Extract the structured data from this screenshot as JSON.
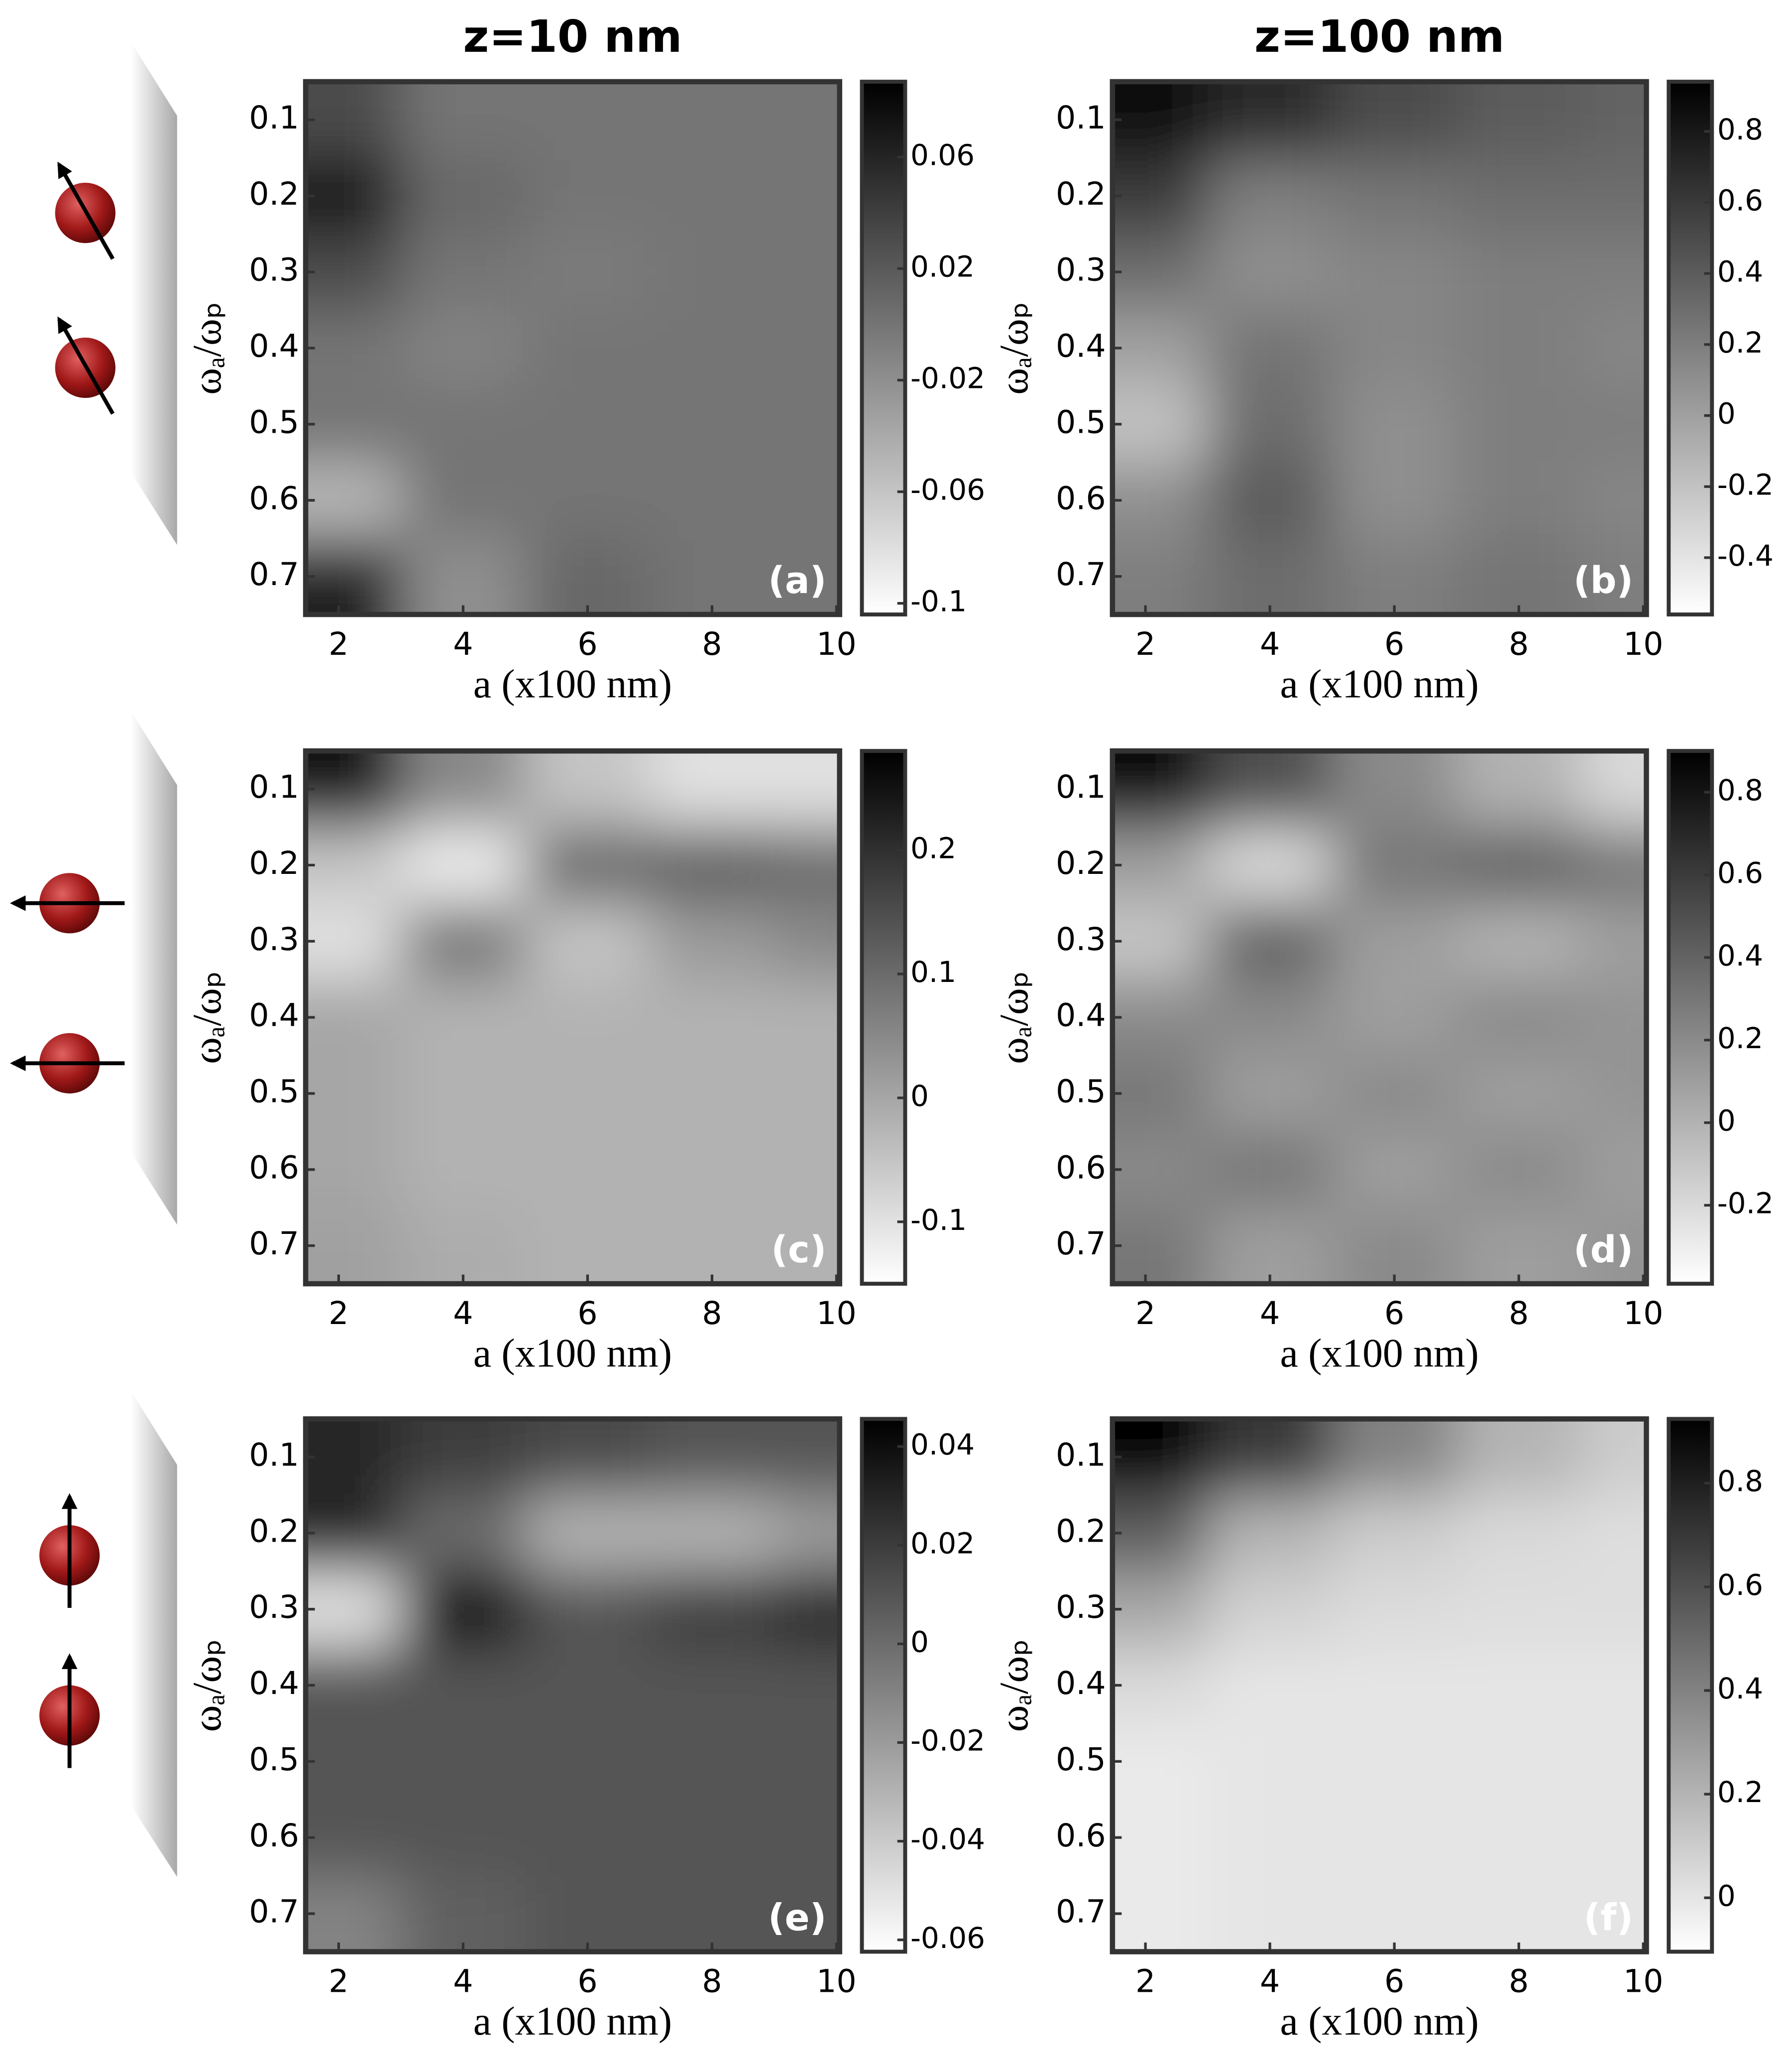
{
  "chart_data": [
    {
      "type": "heatmap",
      "title": "z=10 nm",
      "panel_label": "(a)",
      "xlabel": "a (x100 nm)",
      "ylabel": "ωₐ/ωₚ",
      "x": [
        2,
        4,
        6,
        8,
        10
      ],
      "y": [
        0.1,
        0.2,
        0.3,
        0.4,
        0.5,
        0.6,
        0.7
      ],
      "z": [
        [
          0.03,
          0.0,
          0.0,
          0.0,
          0.0
        ],
        [
          0.07,
          0.01,
          0.0,
          0.0,
          0.0
        ],
        [
          0.03,
          0.0,
          -0.005,
          0.0,
          0.0
        ],
        [
          0.0,
          -0.01,
          0.0,
          0.0,
          0.0
        ],
        [
          0.0,
          0.0,
          0.0,
          0.0,
          0.0
        ],
        [
          -0.05,
          0.0,
          0.0,
          0.0,
          0.0
        ],
        [
          0.06,
          -0.02,
          0.01,
          0.0,
          0.0
        ]
      ],
      "xlim": [
        1.47,
        10.05
      ],
      "ylim": [
        0.05,
        0.75
      ],
      "yreversed": true,
      "xticks": [
        2,
        4,
        6,
        8,
        10
      ],
      "yticks": [
        0.1,
        0.2,
        0.3,
        0.4,
        0.5,
        0.6,
        0.7
      ],
      "clim": [
        -0.104,
        0.087
      ],
      "cticks": [
        0.06,
        0.02,
        -0.02,
        -0.06,
        -0.1
      ],
      "colormap": [
        "#ffffff",
        "#000000"
      ]
    },
    {
      "type": "heatmap",
      "title": "z=100 nm",
      "panel_label": "(b)",
      "xlabel": "a (x100 nm)",
      "ylabel": "ωₐ/ωₚ",
      "x": [
        2,
        4,
        6,
        8,
        10
      ],
      "y": [
        0.1,
        0.2,
        0.3,
        0.4,
        0.5,
        0.6,
        0.7
      ],
      "z": [
        [
          0.9,
          0.7,
          0.5,
          0.4,
          0.35
        ],
        [
          0.6,
          0.2,
          0.25,
          0.3,
          0.3
        ],
        [
          0.3,
          0.1,
          0.15,
          0.2,
          0.2
        ],
        [
          0.0,
          0.25,
          0.15,
          0.2,
          0.15
        ],
        [
          -0.2,
          0.3,
          0.1,
          0.2,
          0.2
        ],
        [
          0.1,
          0.4,
          0.1,
          0.2,
          0.15
        ],
        [
          0.2,
          0.3,
          0.2,
          0.25,
          0.2
        ]
      ],
      "xlim": [
        1.47,
        10.05
      ],
      "ylim": [
        0.05,
        0.75
      ],
      "yreversed": true,
      "xticks": [
        2,
        4,
        6,
        8,
        10
      ],
      "yticks": [
        0.1,
        0.2,
        0.3,
        0.4,
        0.5,
        0.6,
        0.7
      ],
      "clim": [
        -0.56,
        0.94
      ],
      "cticks": [
        0.8,
        0.6,
        0.4,
        0.2,
        0,
        -0.2,
        -0.4
      ],
      "colormap": [
        "#ffffff",
        "#000000"
      ]
    },
    {
      "type": "heatmap",
      "panel_label": "(c)",
      "xlabel": "a (x100 nm)",
      "ylabel": "ωₐ/ωₚ",
      "x": [
        2,
        4,
        6,
        8,
        10
      ],
      "y": [
        0.1,
        0.2,
        0.3,
        0.4,
        0.5,
        0.6,
        0.7
      ],
      "z": [
        [
          0.25,
          0.05,
          -0.05,
          -0.1,
          -0.1
        ],
        [
          -0.05,
          -0.12,
          0.1,
          0.12,
          0.1
        ],
        [
          -0.1,
          0.08,
          -0.05,
          0.02,
          0.05
        ],
        [
          0.0,
          -0.02,
          -0.02,
          -0.02,
          -0.02
        ],
        [
          0.0,
          -0.02,
          -0.02,
          -0.02,
          -0.02
        ],
        [
          0.0,
          -0.02,
          -0.02,
          -0.02,
          -0.02
        ],
        [
          0.01,
          -0.01,
          -0.02,
          -0.02,
          -0.02
        ]
      ],
      "xlim": [
        1.47,
        10.05
      ],
      "ylim": [
        0.05,
        0.75
      ],
      "yreversed": true,
      "xticks": [
        2,
        4,
        6,
        8,
        10
      ],
      "yticks": [
        0.1,
        0.2,
        0.3,
        0.4,
        0.5,
        0.6,
        0.7
      ],
      "clim": [
        -0.15,
        0.28
      ],
      "cticks": [
        0.2,
        0.1,
        0,
        -0.1
      ],
      "colormap": [
        "#ffffff",
        "#000000"
      ]
    },
    {
      "type": "heatmap",
      "panel_label": "(d)",
      "xlabel": "a (x100 nm)",
      "ylabel": "ωₐ/ωₚ",
      "x": [
        2,
        4,
        6,
        8,
        10
      ],
      "y": [
        0.1,
        0.2,
        0.3,
        0.4,
        0.5,
        0.6,
        0.7
      ],
      "z": [
        [
          0.85,
          0.5,
          0.2,
          0.0,
          -0.2
        ],
        [
          0.1,
          -0.2,
          0.3,
          0.4,
          0.3
        ],
        [
          -0.1,
          0.4,
          0.1,
          0.0,
          0.1
        ],
        [
          0.2,
          0.2,
          0.1,
          0.2,
          0.15
        ],
        [
          0.3,
          0.1,
          0.2,
          0.1,
          0.15
        ],
        [
          0.2,
          0.3,
          0.1,
          0.2,
          0.1
        ],
        [
          0.3,
          0.1,
          0.2,
          0.1,
          0.15
        ]
      ],
      "xlim": [
        1.47,
        10.05
      ],
      "ylim": [
        0.05,
        0.75
      ],
      "yreversed": true,
      "xticks": [
        2,
        4,
        6,
        8,
        10
      ],
      "yticks": [
        0.1,
        0.2,
        0.3,
        0.4,
        0.5,
        0.6,
        0.7
      ],
      "clim": [
        -0.39,
        0.9
      ],
      "cticks": [
        0.8,
        0.6,
        0.4,
        0.2,
        0,
        -0.2
      ],
      "colormap": [
        "#ffffff",
        "#000000"
      ]
    },
    {
      "type": "heatmap",
      "panel_label": "(e)",
      "xlabel": "a (x100 nm)",
      "ylabel": "ωₐ/ωₚ",
      "x": [
        2,
        4,
        6,
        8,
        10
      ],
      "y": [
        0.1,
        0.2,
        0.3,
        0.4,
        0.5,
        0.6,
        0.7
      ],
      "z": [
        [
          0.03,
          0.02,
          0.015,
          0.01,
          0.01
        ],
        [
          0.03,
          0.0,
          -0.03,
          -0.03,
          -0.02
        ],
        [
          -0.05,
          0.04,
          0.01,
          0.02,
          0.03
        ],
        [
          0.01,
          0.01,
          0.01,
          0.01,
          0.01
        ],
        [
          0.01,
          0.01,
          0.01,
          0.01,
          0.01
        ],
        [
          0.01,
          0.01,
          0.01,
          0.01,
          0.01
        ],
        [
          -0.01,
          0.005,
          0.01,
          0.01,
          0.01
        ]
      ],
      "xlim": [
        1.47,
        10.05
      ],
      "ylim": [
        0.05,
        0.75
      ],
      "yreversed": true,
      "xticks": [
        2,
        4,
        6,
        8,
        10
      ],
      "yticks": [
        0.1,
        0.2,
        0.3,
        0.4,
        0.5,
        0.6,
        0.7
      ],
      "clim": [
        -0.0624,
        0.0456
      ],
      "cticks": [
        0.04,
        0.02,
        0,
        -0.02,
        -0.04,
        -0.06
      ],
      "colormap": [
        "#ffffff",
        "#000000"
      ]
    },
    {
      "type": "heatmap",
      "panel_label": "(f)",
      "xlabel": "a (x100 nm)",
      "ylabel": "ωₐ/ωₚ",
      "x": [
        2,
        4,
        6,
        8,
        10
      ],
      "y": [
        0.1,
        0.2,
        0.3,
        0.4,
        0.5,
        0.6,
        0.7
      ],
      "z": [
        [
          0.9,
          0.7,
          0.4,
          0.2,
          0.1
        ],
        [
          0.55,
          0.2,
          0.1,
          0.05,
          0.03
        ],
        [
          0.25,
          0.08,
          0.04,
          0.03,
          0.03
        ],
        [
          0.05,
          0.0,
          0.0,
          0.0,
          0.0
        ],
        [
          -0.02,
          0.0,
          0.0,
          0.0,
          0.0
        ],
        [
          -0.02,
          0.0,
          0.0,
          0.0,
          0.0
        ],
        [
          -0.02,
          0.0,
          0.0,
          0.0,
          0.0
        ]
      ],
      "xlim": [
        1.47,
        10.05
      ],
      "ylim": [
        0.05,
        0.75
      ],
      "yreversed": true,
      "xticks": [
        2,
        4,
        6,
        8,
        10
      ],
      "yticks": [
        0.1,
        0.2,
        0.3,
        0.4,
        0.5,
        0.6,
        0.7
      ],
      "clim": [
        -0.104,
        0.924
      ],
      "cticks": [
        0.8,
        0.6,
        0.4,
        0.2,
        0
      ],
      "colormap": [
        "#ffffff",
        "#000000"
      ]
    }
  ]
}
